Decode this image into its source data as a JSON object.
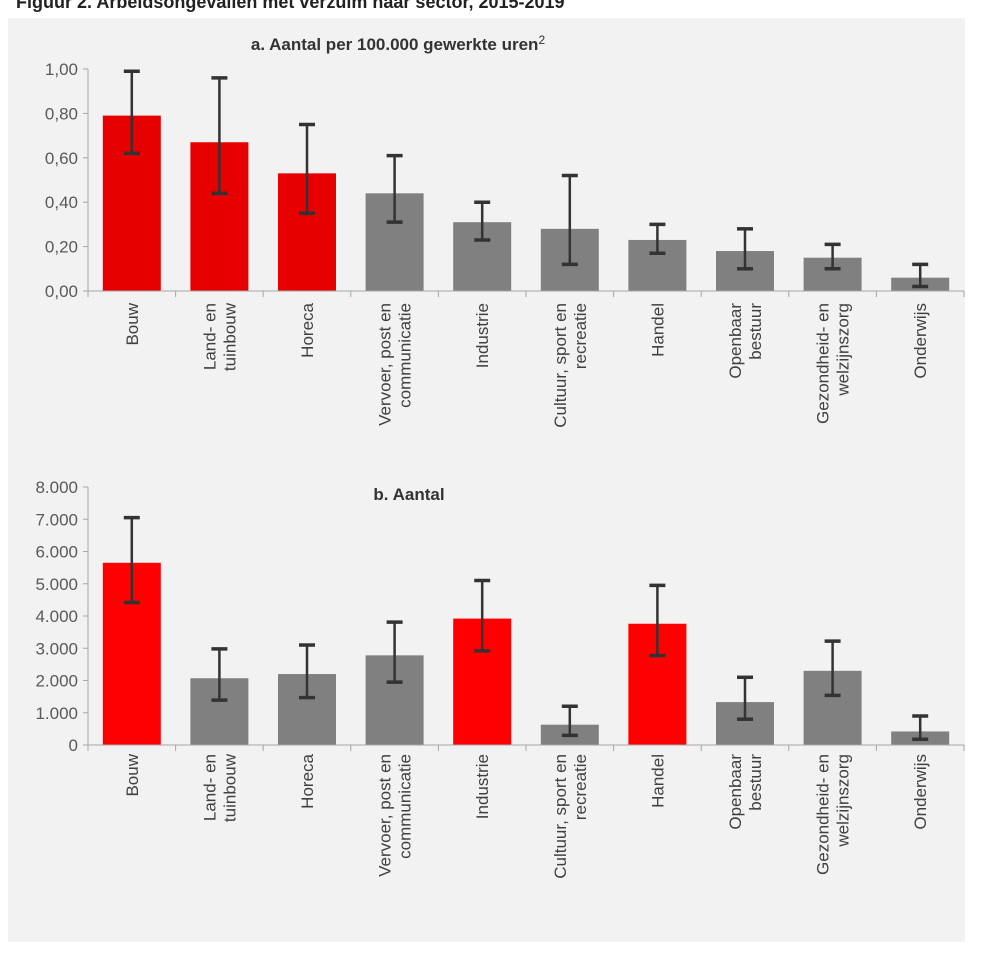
{
  "header": {
    "text": "Figuur 2. Arbeidsongevallen met verzuim naar sector, 2015-2019"
  },
  "chart_data": [
    {
      "type": "bar",
      "title": "a. Aantal per 100.000 gewerkte uren",
      "title_superscript": "2",
      "categories": [
        "Bouw",
        "Land- en tuinbouw",
        "Horeca",
        "Vervoer, post en communicatie",
        "Industrie",
        "Cultuur, sport en recreatie",
        "Handel",
        "Openbaar bestuur",
        "Gezondheid- en welzijnszorg",
        "Onderwijs"
      ],
      "category_label_lines": [
        [
          "Bouw"
        ],
        [
          "Land- en",
          "tuinbouw"
        ],
        [
          "Horeca"
        ],
        [
          "Vervoer, post en",
          "communicatie"
        ],
        [
          "Industrie"
        ],
        [
          "Cultuur, sport en",
          "recreatie"
        ],
        [
          "Handel"
        ],
        [
          "Openbaar",
          "bestuur"
        ],
        [
          "Gezondheid- en",
          "welzijnszorg"
        ],
        [
          "Onderwijs"
        ]
      ],
      "values": [
        0.79,
        0.67,
        0.53,
        0.44,
        0.31,
        0.28,
        0.23,
        0.18,
        0.15,
        0.06
      ],
      "error_low": [
        0.62,
        0.44,
        0.35,
        0.31,
        0.23,
        0.12,
        0.17,
        0.1,
        0.1,
        0.02
      ],
      "error_high": [
        0.99,
        0.96,
        0.75,
        0.61,
        0.4,
        0.52,
        0.3,
        0.28,
        0.21,
        0.12
      ],
      "highlight": [
        true,
        true,
        true,
        false,
        false,
        false,
        false,
        false,
        false,
        false
      ],
      "yticks": [
        "0,00",
        "0,20",
        "0,40",
        "0,60",
        "0,80",
        "1,00"
      ],
      "ylim": [
        0,
        1.0
      ],
      "colors": {
        "highlight": "#e60000",
        "normal": "#808080",
        "error_bar": "#333333"
      }
    },
    {
      "type": "bar",
      "title": "b. Aantal",
      "categories": [
        "Bouw",
        "Land- en tuinbouw",
        "Horeca",
        "Vervoer, post en communicatie",
        "Industrie",
        "Cultuur, sport en recreatie",
        "Handel",
        "Openbaar bestuur",
        "Gezondheid- en welzijnszorg",
        "Onderwijs"
      ],
      "category_label_lines": [
        [
          "Bouw"
        ],
        [
          "Land- en",
          "tuinbouw"
        ],
        [
          "Horeca"
        ],
        [
          "Vervoer, post en",
          "communicatie"
        ],
        [
          "Industrie"
        ],
        [
          "Cultuur, sport en",
          "recreatie"
        ],
        [
          "Handel"
        ],
        [
          "Openbaar",
          "bestuur"
        ],
        [
          "Gezondheid- en",
          "welzijnszorg"
        ],
        [
          "Onderwijs"
        ]
      ],
      "values": [
        5650,
        2070,
        2200,
        2780,
        3920,
        630,
        3760,
        1330,
        2300,
        420
      ],
      "error_low": [
        4420,
        1390,
        1470,
        1950,
        2920,
        300,
        2770,
        800,
        1540,
        180
      ],
      "error_high": [
        7050,
        2980,
        3100,
        3810,
        5100,
        1200,
        4950,
        2100,
        3220,
        900
      ],
      "highlight": [
        true,
        false,
        false,
        false,
        true,
        false,
        true,
        false,
        false,
        false
      ],
      "yticks": [
        "0",
        "1.000",
        "2.000",
        "3.000",
        "4.000",
        "5.000",
        "6.000",
        "7.000",
        "8.000"
      ],
      "ylim": [
        0,
        8000
      ],
      "colors": {
        "highlight": "#ff0000",
        "normal": "#808080",
        "error_bar": "#333333"
      }
    }
  ]
}
